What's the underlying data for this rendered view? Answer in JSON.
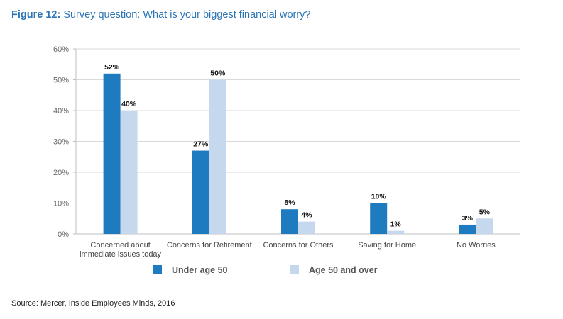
{
  "title_prefix": "Figure 12:",
  "title_text": " Survey question: What is your biggest financial worry?",
  "source": "Source: Mercer, Inside Employees Minds, 2016",
  "chart_data": {
    "type": "bar",
    "categories": [
      [
        "Concerned about",
        "immediate issues today"
      ],
      [
        "Concerns for Retirement"
      ],
      [
        "Concerns for Others"
      ],
      [
        "Saving for Home"
      ],
      [
        "No Worries"
      ]
    ],
    "series": [
      {
        "name": "Under age 50",
        "values": [
          52,
          27,
          8,
          10,
          3
        ],
        "color": "#1f7bbf"
      },
      {
        "name": "Age 50 and over",
        "values": [
          40,
          50,
          4,
          1,
          5
        ],
        "color": "#c5d8ee"
      }
    ],
    "yticks": [
      "0%",
      "10%",
      "20%",
      "30%",
      "40%",
      "50%",
      "60%"
    ],
    "ylim": [
      0,
      60
    ],
    "grid": true,
    "legend": "bottom"
  }
}
